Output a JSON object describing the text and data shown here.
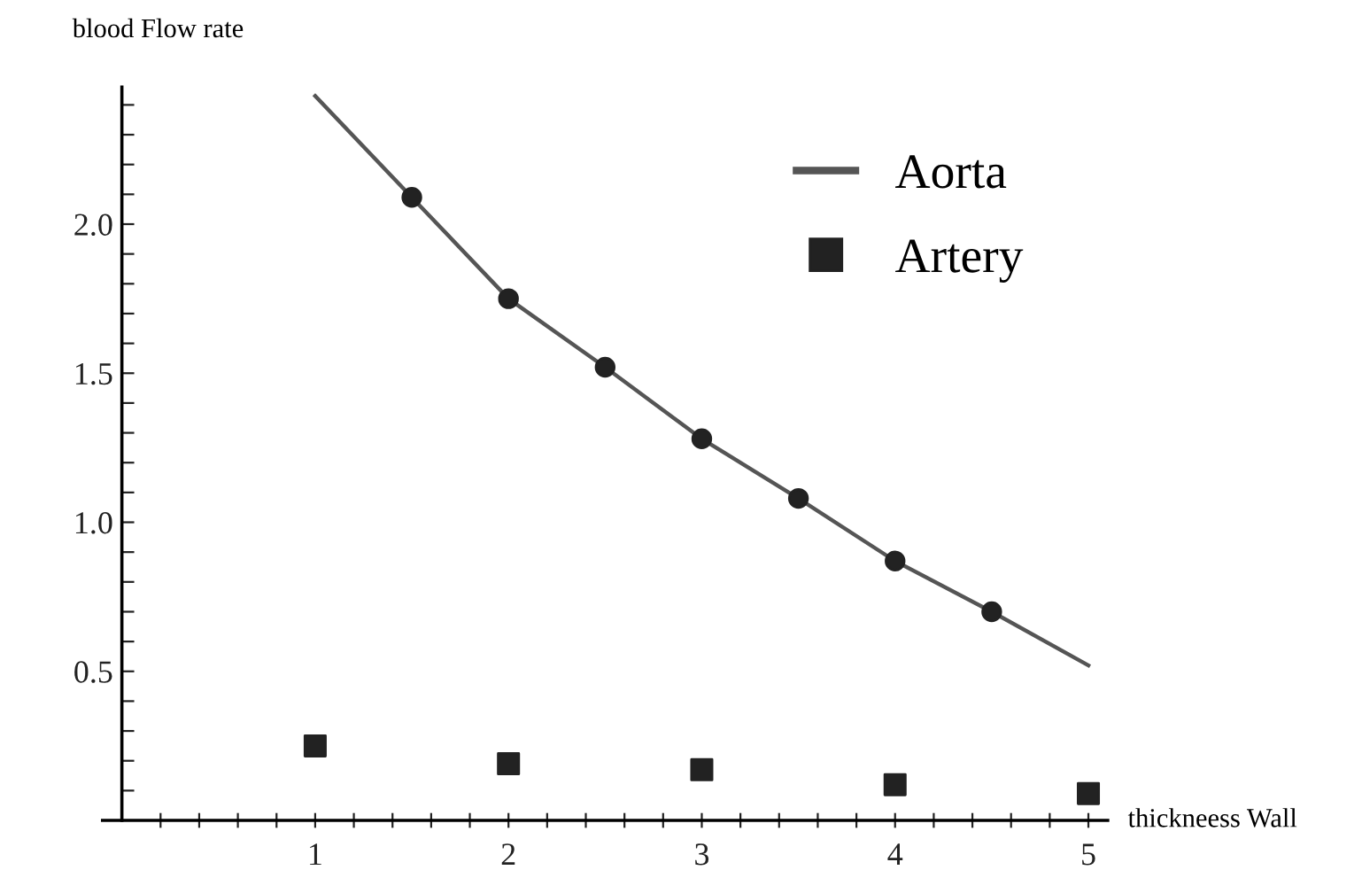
{
  "chart_data": {
    "type": "line",
    "xlabel": "thickneess Wall",
    "ylabel": "blood Flow rate",
    "xlim": [
      -0.1,
      5.1
    ],
    "ylim": [
      0,
      2.46
    ],
    "xticks": [
      {
        "value": 0.2,
        "label": null
      },
      {
        "value": 0.4,
        "label": null
      },
      {
        "value": 0.6,
        "label": null
      },
      {
        "value": 0.8,
        "label": null
      },
      1,
      {
        "value": 1.2,
        "label": null
      },
      {
        "value": 1.4,
        "label": null
      },
      {
        "value": 1.6,
        "label": null
      },
      {
        "value": 1.8,
        "label": null
      },
      2,
      {
        "value": 2.2,
        "label": null
      },
      {
        "value": 2.4,
        "label": null
      },
      {
        "value": 2.6,
        "label": null
      },
      {
        "value": 2.8,
        "label": null
      },
      3,
      {
        "value": 3.2,
        "label": null
      },
      {
        "value": 3.4,
        "label": null
      },
      {
        "value": 3.6,
        "label": null
      },
      {
        "value": 3.8,
        "label": null
      },
      4,
      {
        "value": 4.2,
        "label": null
      },
      {
        "value": 4.4,
        "label": null
      },
      {
        "value": 4.6,
        "label": null
      },
      {
        "value": 4.8,
        "label": null
      },
      5
    ],
    "yticks": [
      {
        "value": 0.1,
        "label": null
      },
      {
        "value": 0.2,
        "label": null
      },
      {
        "value": 0.3,
        "label": null
      },
      {
        "value": 0.4,
        "label": null
      },
      {
        "value": 0.5,
        "label": "0.5"
      },
      {
        "value": 0.6,
        "label": null
      },
      {
        "value": 0.7,
        "label": null
      },
      {
        "value": 0.8,
        "label": null
      },
      {
        "value": 0.9,
        "label": null
      },
      {
        "value": 1,
        "label": "1.0"
      },
      {
        "value": 1.1,
        "label": null
      },
      {
        "value": 1.2,
        "label": null
      },
      {
        "value": 1.3,
        "label": null
      },
      {
        "value": 1.4,
        "label": null
      },
      {
        "value": 1.5,
        "label": "1.5"
      },
      {
        "value": 1.6,
        "label": null
      },
      {
        "value": 1.7,
        "label": null
      },
      {
        "value": 1.8,
        "label": null
      },
      {
        "value": 1.9,
        "label": null
      },
      {
        "value": 2,
        "label": "2.0"
      },
      {
        "value": 2.1,
        "label": null
      },
      {
        "value": 2.2,
        "label": null
      },
      {
        "value": 2.3,
        "label": null
      },
      {
        "value": 2.4,
        "label": null
      }
    ],
    "grid": false,
    "legend": "top right",
    "series": [
      {
        "name": "Aorta",
        "color": "#555555",
        "marker": "none",
        "line_style": "solid",
        "x": [
          1,
          1.5,
          2,
          2.5,
          3,
          3.5,
          4,
          4.5,
          5
        ],
        "values": [
          2.43,
          2.09,
          1.75,
          1.52,
          1.28,
          1.08,
          0.87,
          0.7,
          0.52
        ]
      },
      {
        "type": "scatter",
        "color": "#222222",
        "marker": "circle",
        "x": [
          1.5,
          2,
          2.5,
          3,
          3.5,
          4,
          4.5
        ],
        "values": [
          2.09,
          1.75,
          1.52,
          1.28,
          1.08,
          0.87,
          0.7
        ]
      },
      {
        "name": "Artery",
        "type": "scatter",
        "color": "#222222",
        "marker": "square",
        "x": [
          1,
          2,
          3,
          4,
          5
        ],
        "values": [
          0.25,
          0.19,
          0.17,
          0.12,
          0.09
        ]
      }
    ]
  }
}
